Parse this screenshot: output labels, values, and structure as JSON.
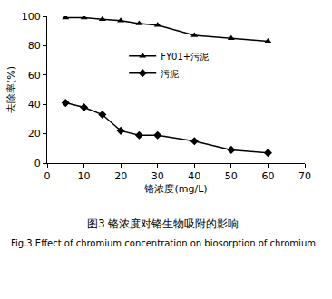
{
  "chart_data": {
    "type": "line",
    "title": "图3 铬浓度对铬生物吸附的影响",
    "subtitle": "Fig.3 Effect of chromium concentration on biosorption of chromium",
    "x_label": "铬浓度(mg/L)",
    "y_label": "去除率(%)",
    "x": [
      5,
      10,
      15,
      20,
      25,
      30,
      40,
      50,
      60
    ],
    "series": [
      {
        "name": "FY01+污泥",
        "color": "#000000",
        "marker": "triangle-up",
        "values": [
          99,
          99,
          98,
          97,
          95,
          94,
          87,
          85,
          83
        ]
      },
      {
        "name": "污泥",
        "color": "#000000",
        "marker": "diamond",
        "values": [
          41,
          38,
          33,
          22,
          19,
          19,
          15,
          9,
          7
        ]
      }
    ],
    "xlim": [
      0,
      70
    ],
    "xticks": [
      0,
      10,
      20,
      30,
      40,
      50,
      60,
      70
    ],
    "ylim": [
      0,
      100
    ],
    "yticks": [
      0,
      20,
      40,
      60,
      80,
      100
    ],
    "grid": false,
    "legend": "upper center"
  }
}
